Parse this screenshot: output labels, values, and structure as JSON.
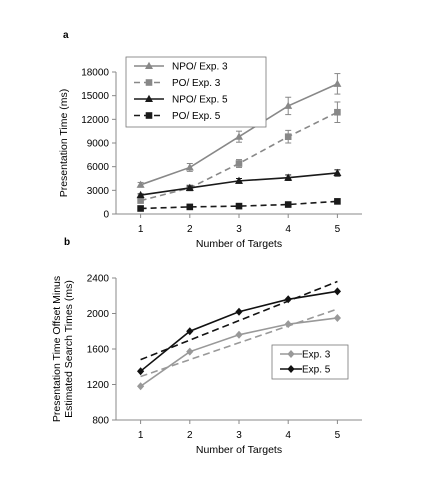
{
  "chart_data": [
    {
      "panel_label": "a",
      "type": "line",
      "xlabel": "Number of Targets",
      "ylabel": "Presentation Time (ms)",
      "x": [
        1,
        2,
        3,
        4,
        5
      ],
      "xlim": [
        0.5,
        5.5
      ],
      "ylim": [
        0,
        18000
      ],
      "yticks": [
        "0",
        "3000",
        "6000",
        "9000",
        "12000",
        "15000",
        "18000"
      ],
      "xticks": [
        "1",
        "2",
        "3",
        "4",
        "5"
      ],
      "grid": false,
      "legend_position": "top-left",
      "series": [
        {
          "name": "NPO/ Exp. 3",
          "values": [
            3700,
            5900,
            9800,
            13700,
            16500
          ],
          "errors": [
            300,
            500,
            700,
            1100,
            1300
          ],
          "color": "#888888",
          "marker": "triangle",
          "dash": false
        },
        {
          "name": "PO/ Exp. 3",
          "values": [
            1700,
            3300,
            6400,
            9800,
            12900
          ],
          "errors": [
            200,
            300,
            500,
            800,
            1300
          ],
          "color": "#888888",
          "marker": "square",
          "dash": true
        },
        {
          "name": "NPO/ Exp. 5",
          "values": [
            2400,
            3300,
            4200,
            4600,
            5200
          ],
          "errors": [
            150,
            250,
            300,
            350,
            400
          ],
          "color": "#1a1a1a",
          "marker": "triangle",
          "dash": false
        },
        {
          "name": "PO/ Exp. 5",
          "values": [
            700,
            900,
            1000,
            1200,
            1600
          ],
          "errors": [
            50,
            60,
            70,
            80,
            120
          ],
          "color": "#1a1a1a",
          "marker": "square",
          "dash": true
        }
      ]
    },
    {
      "panel_label": "b",
      "type": "line",
      "xlabel": "Number of Targets",
      "ylabel_lines": [
        "Presentation Time Offset Minus",
        "Estimated Search Times (ms)"
      ],
      "x": [
        1,
        2,
        3,
        4,
        5
      ],
      "xlim": [
        0.5,
        5.5
      ],
      "ylim": [
        800,
        2400
      ],
      "yticks": [
        "800",
        "1200",
        "1600",
        "2000",
        "2400"
      ],
      "xticks": [
        "1",
        "2",
        "3",
        "4",
        "5"
      ],
      "grid": false,
      "legend_position": "center-right",
      "series": [
        {
          "name": "Exp. 3",
          "values": [
            1180,
            1570,
            1760,
            1880,
            1950
          ],
          "color": "#999999",
          "marker": "diamond",
          "trend": [
            1290,
            2050
          ]
        },
        {
          "name": "Exp. 5",
          "values": [
            1350,
            1800,
            2020,
            2160,
            2250
          ],
          "color": "#111111",
          "marker": "diamond",
          "trend": [
            1480,
            2360
          ]
        }
      ]
    }
  ]
}
